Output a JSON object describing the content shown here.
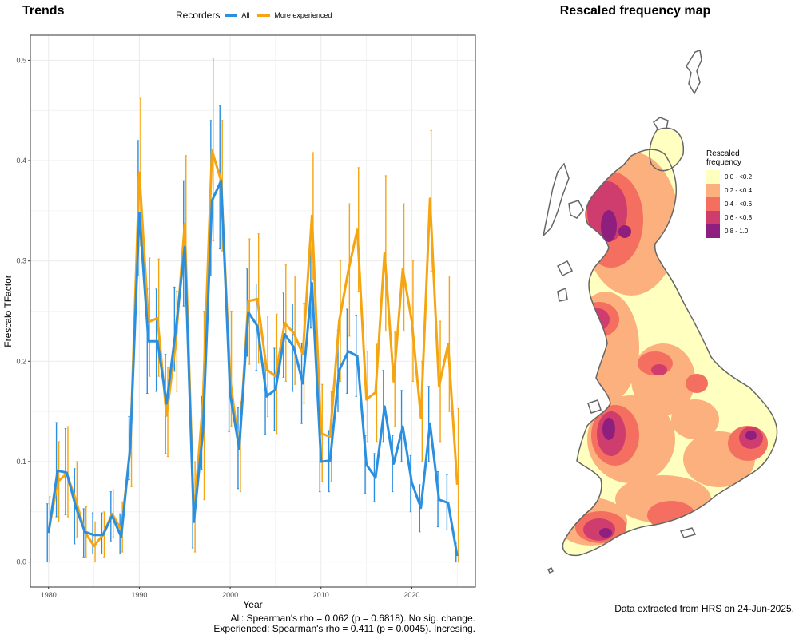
{
  "trends_panel": {
    "title": "Trends"
  },
  "legend": {
    "title": "Recorders",
    "entries": [
      {
        "label": "All",
        "color": "#2b8fe0"
      },
      {
        "label": "More experienced",
        "color": "#f5a511"
      }
    ]
  },
  "stats": {
    "all": "All: Spearman's rho = 0.062 (p = 0.6818). No sig. change.",
    "experienced": "Experienced: Spearman's rho = 0.411 (p = 0.0045). Incresing."
  },
  "map_panel": {
    "title": "Rescaled frequency map",
    "legend_title_line1": "Rescaled",
    "legend_title_line2": "frequency",
    "bins": [
      {
        "label": "0.0 - <0.2",
        "color": "#ffffc0"
      },
      {
        "label": "0.2 - <0.4",
        "color": "#fcb07d"
      },
      {
        "label": "0.4 - <0.6",
        "color": "#f46f5f"
      },
      {
        "label": "0.6 - <0.8",
        "color": "#ce3d6e"
      },
      {
        "label": "0.8 - 1.0",
        "color": "#8e1f7f"
      }
    ],
    "outline_color": "#666666",
    "credit": "Data extracted from HRS on 24-Jun-2025."
  },
  "chart_data": {
    "type": "line",
    "title": "Trends",
    "xlabel": "Year",
    "ylabel": "Frescalo TFactor",
    "xlim": [
      1978,
      2027
    ],
    "ylim": [
      -0.025,
      0.525
    ],
    "x_ticks": [
      1980,
      1990,
      2000,
      2010,
      2020
    ],
    "y_ticks": [
      0.0,
      0.1,
      0.2,
      0.3,
      0.4,
      0.5
    ],
    "y_tick_labels": [
      "0.0",
      "0.1",
      "0.2",
      "0.3",
      "0.4",
      "0.5"
    ],
    "grid": true,
    "x": [
      1980,
      1981,
      1982,
      1983,
      1984,
      1985,
      1986,
      1987,
      1988,
      1989,
      1990,
      1991,
      1992,
      1993,
      1994,
      1995,
      1996,
      1997,
      1998,
      1999,
      2000,
      2001,
      2002,
      2003,
      2004,
      2005,
      2006,
      2007,
      2008,
      2009,
      2010,
      2011,
      2012,
      2013,
      2014,
      2015,
      2016,
      2017,
      2018,
      2019,
      2020,
      2021,
      2022,
      2023,
      2024,
      2025
    ],
    "series": [
      {
        "name": "All",
        "color": "#2b8fe0",
        "values": [
          0.029,
          0.091,
          0.089,
          0.055,
          0.03,
          0.027,
          0.027,
          0.046,
          0.025,
          0.115,
          0.348,
          0.22,
          0.22,
          0.158,
          0.231,
          0.314,
          0.04,
          0.13,
          0.36,
          0.38,
          0.167,
          0.113,
          0.249,
          0.235,
          0.165,
          0.172,
          0.227,
          0.214,
          0.178,
          0.278,
          0.1,
          0.101,
          0.191,
          0.21,
          0.205,
          0.097,
          0.084,
          0.155,
          0.098,
          0.135,
          0.079,
          0.054,
          0.138,
          0.062,
          0.059,
          0.006
        ],
        "lower": [
          0.0,
          0.045,
          0.047,
          0.018,
          0.005,
          0.008,
          0.008,
          0.02,
          0.008,
          0.082,
          0.285,
          0.168,
          0.17,
          0.108,
          0.19,
          0.255,
          0.014,
          0.092,
          0.285,
          0.312,
          0.13,
          0.073,
          0.205,
          0.191,
          0.127,
          0.131,
          0.184,
          0.17,
          0.138,
          0.233,
          0.07,
          0.07,
          0.15,
          0.168,
          0.165,
          0.068,
          0.06,
          0.12,
          0.07,
          0.1,
          0.05,
          0.03,
          0.1,
          0.035,
          0.032,
          0.0
        ],
        "upper": [
          0.058,
          0.139,
          0.133,
          0.093,
          0.053,
          0.049,
          0.049,
          0.07,
          0.048,
          0.145,
          0.42,
          0.272,
          0.272,
          0.207,
          0.274,
          0.38,
          0.07,
          0.165,
          0.44,
          0.455,
          0.213,
          0.154,
          0.292,
          0.277,
          0.206,
          0.213,
          0.268,
          0.257,
          0.218,
          0.322,
          0.13,
          0.131,
          0.231,
          0.252,
          0.246,
          0.126,
          0.108,
          0.191,
          0.126,
          0.171,
          0.106,
          0.077,
          0.175,
          0.09,
          0.087,
          0.02
        ]
      },
      {
        "name": "More experienced",
        "color": "#f5a511",
        "values": [
          0.03,
          0.08,
          0.088,
          0.062,
          0.03,
          0.016,
          0.027,
          0.048,
          0.032,
          0.112,
          0.388,
          0.239,
          0.243,
          0.146,
          0.218,
          0.337,
          0.044,
          0.16,
          0.41,
          0.38,
          0.182,
          0.113,
          0.26,
          0.262,
          0.192,
          0.185,
          0.238,
          0.228,
          0.207,
          0.345,
          0.128,
          0.125,
          0.24,
          0.29,
          0.331,
          0.162,
          0.169,
          0.308,
          0.18,
          0.292,
          0.24,
          0.144,
          0.362,
          0.175,
          0.217,
          0.077
        ],
        "lower": [
          0.0,
          0.04,
          0.045,
          0.025,
          0.005,
          0.0,
          0.005,
          0.025,
          0.01,
          0.075,
          0.315,
          0.185,
          0.185,
          0.105,
          0.17,
          0.265,
          0.01,
          0.062,
          0.32,
          0.31,
          0.135,
          0.07,
          0.197,
          0.198,
          0.145,
          0.128,
          0.18,
          0.177,
          0.158,
          0.282,
          0.08,
          0.08,
          0.18,
          0.225,
          0.27,
          0.12,
          0.12,
          0.23,
          0.135,
          0.23,
          0.18,
          0.1,
          0.29,
          0.12,
          0.15,
          0.0
        ],
        "upper": [
          0.065,
          0.12,
          0.135,
          0.1,
          0.055,
          0.04,
          0.05,
          0.072,
          0.06,
          0.15,
          0.462,
          0.303,
          0.302,
          0.194,
          0.27,
          0.405,
          0.1,
          0.25,
          0.502,
          0.44,
          0.25,
          0.16,
          0.322,
          0.327,
          0.245,
          0.247,
          0.296,
          0.285,
          0.258,
          0.408,
          0.177,
          0.17,
          0.3,
          0.357,
          0.393,
          0.21,
          0.217,
          0.385,
          0.23,
          0.357,
          0.3,
          0.2,
          0.43,
          0.24,
          0.285,
          0.153
        ]
      }
    ]
  }
}
